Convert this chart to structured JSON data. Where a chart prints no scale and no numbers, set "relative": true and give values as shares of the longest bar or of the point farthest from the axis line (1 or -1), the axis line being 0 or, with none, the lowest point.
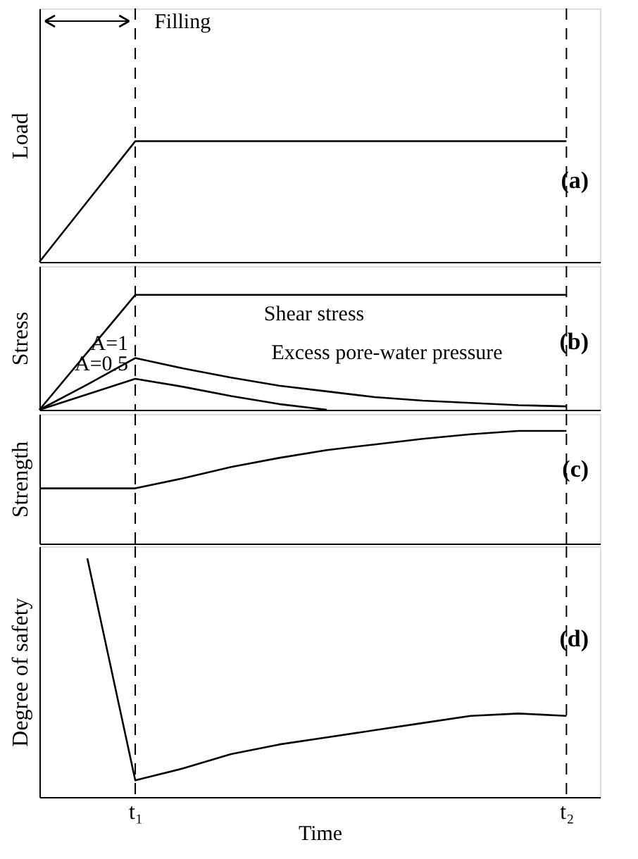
{
  "chart_data": [
    {
      "type": "line",
      "relative": true,
      "ylabel": "Load",
      "categories": [
        null,
        null,
        "t₁",
        null,
        null,
        null,
        null,
        null,
        null,
        null,
        null,
        "t₂"
      ],
      "tick_labels": false,
      "annotations": [
        "Filling",
        "(a)"
      ],
      "ref_lines": [
        {
          "axis": "x",
          "value": "t₁",
          "line_style": "dashed"
        },
        {
          "axis": "x",
          "value": "t₂",
          "line_style": "dashed"
        }
      ],
      "series": [
        {
          "color": "#000000",
          "values": [
            0,
            0.5,
            1,
            1,
            1,
            1,
            1,
            1,
            1,
            1,
            1,
            1
          ]
        }
      ]
    },
    {
      "type": "line",
      "relative": true,
      "ylabel": "Stress",
      "categories": [
        null,
        null,
        "t₁",
        null,
        null,
        null,
        null,
        null,
        null,
        null,
        null,
        "t₂"
      ],
      "tick_labels": false,
      "annotations": [
        "Shear stress",
        "Excess pore-water pressure",
        "(b)"
      ],
      "ref_lines": [
        {
          "axis": "x",
          "value": "t₁",
          "line_style": "dashed"
        },
        {
          "axis": "x",
          "value": "t₂",
          "line_style": "dashed"
        }
      ],
      "series": [
        {
          "color": "#000000",
          "values": [
            0,
            0.5,
            1,
            1,
            1,
            1,
            1,
            1,
            1,
            1,
            1,
            1
          ]
        },
        {
          "name": "A=1",
          "color": "#000000",
          "values": [
            0,
            0.22,
            0.45,
            0.36,
            0.28,
            0.21,
            0.16,
            0.11,
            0.08,
            0.06,
            0.04,
            0.03
          ]
        },
        {
          "name": "A=0.5",
          "color": "#000000",
          "values": [
            0,
            0.135,
            0.27,
            0.2,
            0.12,
            0.05,
            0,
            null,
            null,
            null,
            null,
            null
          ]
        }
      ]
    },
    {
      "type": "line",
      "relative": true,
      "ylabel": "Strength",
      "categories": [
        null,
        null,
        "t₁",
        null,
        null,
        null,
        null,
        null,
        null,
        null,
        null,
        "t₂"
      ],
      "tick_labels": false,
      "annotations": [
        "(c)"
      ],
      "ref_lines": [
        {
          "axis": "x",
          "value": "t₁",
          "line_style": "dashed"
        },
        {
          "axis": "x",
          "value": "t₂",
          "line_style": "dashed"
        }
      ],
      "series": [
        {
          "color": "#000000",
          "values": [
            0.49,
            0.49,
            0.49,
            0.58,
            0.68,
            0.76,
            0.83,
            0.88,
            0.93,
            0.97,
            1,
            1
          ]
        }
      ]
    },
    {
      "type": "line",
      "relative": true,
      "ylabel": "Degree of safety",
      "xlabel": "Time",
      "categories": [
        null,
        null,
        "t₁",
        null,
        null,
        null,
        null,
        null,
        null,
        null,
        null,
        "t₂"
      ],
      "tick_labels": "x",
      "annotations": [
        "(d)"
      ],
      "ref_lines": [
        {
          "axis": "x",
          "value": "t₁",
          "line_style": "dashed"
        },
        {
          "axis": "x",
          "value": "t₂",
          "line_style": "dashed"
        }
      ],
      "series": [
        {
          "color": "#000000",
          "values": [
            null,
            1,
            0.07,
            0.12,
            0.18,
            0.22,
            0.25,
            0.28,
            0.31,
            0.34,
            0.35,
            0.34
          ]
        }
      ]
    }
  ]
}
